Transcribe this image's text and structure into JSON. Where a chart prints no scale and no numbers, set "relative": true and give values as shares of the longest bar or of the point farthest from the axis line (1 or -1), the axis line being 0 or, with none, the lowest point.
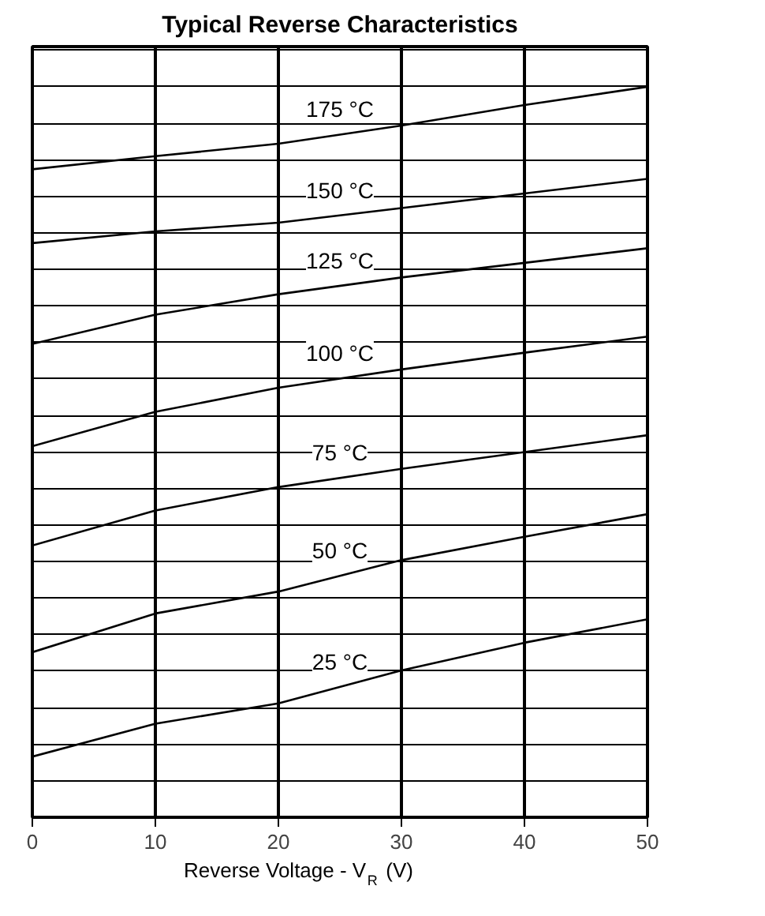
{
  "chart_data": {
    "type": "line",
    "title": "Typical Reverse Characteristics",
    "xlabel": "Reverse Voltage - V$_{R}$ (V)",
    "x": [
      0,
      10,
      20,
      30,
      40,
      50
    ],
    "xlim": [
      0,
      50
    ],
    "xticks": [
      0,
      10,
      20,
      30,
      40,
      50
    ],
    "relative": true,
    "grid": true,
    "marker": "none",
    "line_style": "solid",
    "series": [
      {
        "name": "175 °C",
        "color": "#000000",
        "values": [
          0.887,
          0.905,
          0.922,
          0.947,
          0.975,
          1.0
        ]
      },
      {
        "name": "150 °C",
        "color": "#000000",
        "values": [
          0.786,
          0.802,
          0.814,
          0.834,
          0.854,
          0.874
        ]
      },
      {
        "name": "125 °C",
        "color": "#000000",
        "values": [
          0.648,
          0.688,
          0.716,
          0.739,
          0.759,
          0.779
        ]
      },
      {
        "name": "100 °C",
        "color": "#000000",
        "values": [
          0.508,
          0.555,
          0.588,
          0.613,
          0.636,
          0.658
        ]
      },
      {
        "name": "75 °C",
        "color": "#000000",
        "values": [
          0.372,
          0.42,
          0.452,
          0.477,
          0.5,
          0.523
        ]
      },
      {
        "name": "50 °C",
        "color": "#000000",
        "values": [
          0.226,
          0.279,
          0.309,
          0.352,
          0.384,
          0.415
        ]
      },
      {
        "name": "25 °C",
        "color": "#000000",
        "values": [
          0.083,
          0.128,
          0.156,
          0.201,
          0.239,
          0.271
        ]
      }
    ]
  }
}
